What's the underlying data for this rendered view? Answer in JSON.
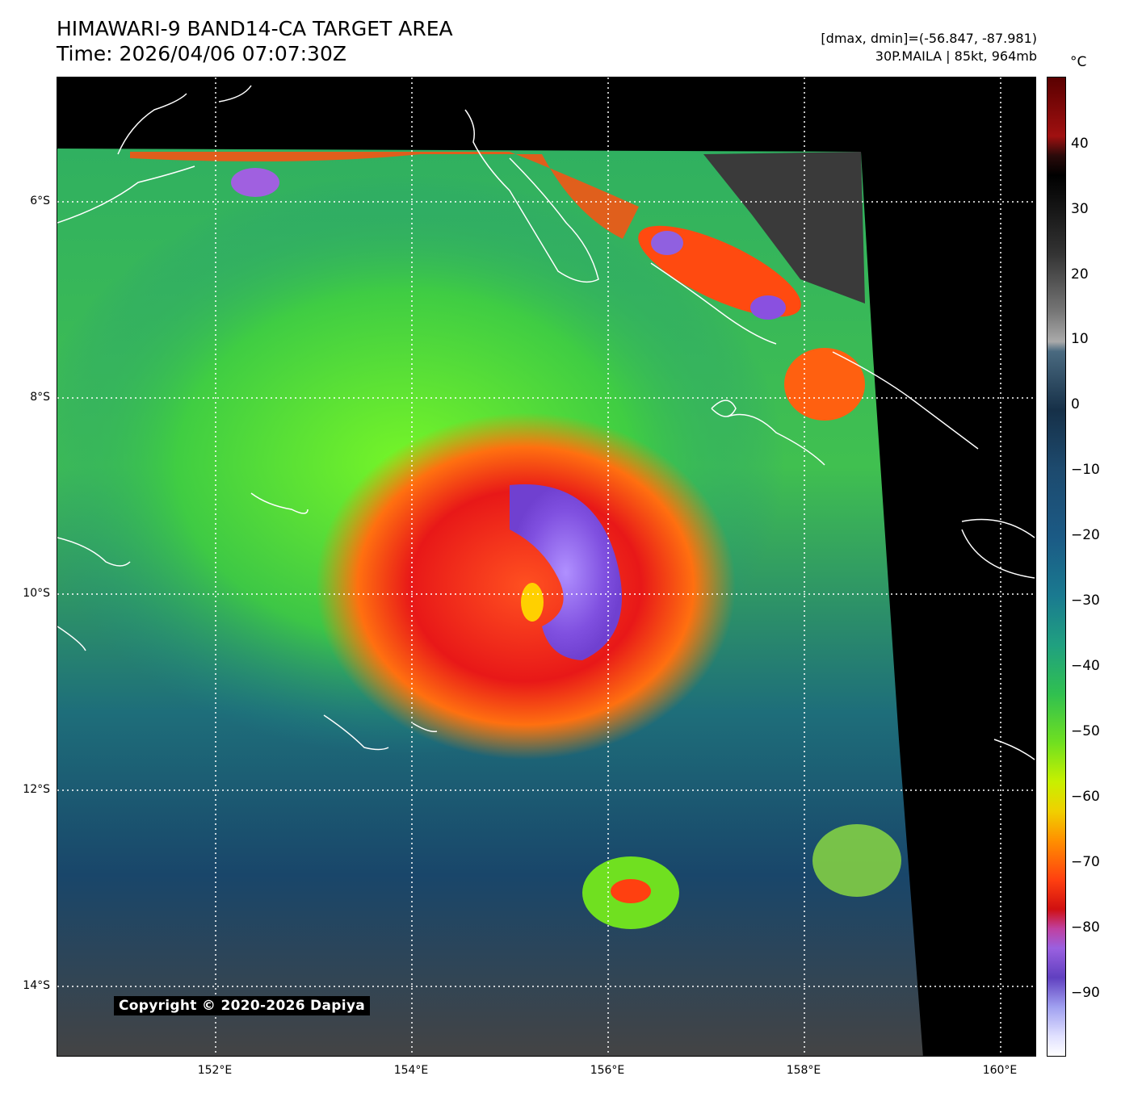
{
  "title": {
    "line1": "HIMAWARI-9 BAND14-CA TARGET AREA",
    "line2": "Time: 2026/04/06 07:07:30Z"
  },
  "info": {
    "line1": "[dmax, dmin]=(-56.847, -87.981)",
    "line2": "30P.MAILA | 85kt, 964mb"
  },
  "map": {
    "lat_labels": [
      "6°S",
      "8°S",
      "10°S",
      "12°S",
      "14°S"
    ],
    "lon_labels": [
      "152°E",
      "154°E",
      "156°E",
      "158°E",
      "160°E"
    ],
    "copyright": "Copyright © 2020-2026 Dapiya"
  },
  "colorbar": {
    "unit": "°C",
    "ticks": [
      "40",
      "30",
      "20",
      "10",
      "0",
      "−10",
      "−20",
      "−30",
      "−40",
      "−50",
      "−60",
      "−70",
      "−80",
      "−90"
    ]
  },
  "colors": {
    "background": "#000000",
    "grid": "#ffffff",
    "coastline": "#ffffff"
  }
}
